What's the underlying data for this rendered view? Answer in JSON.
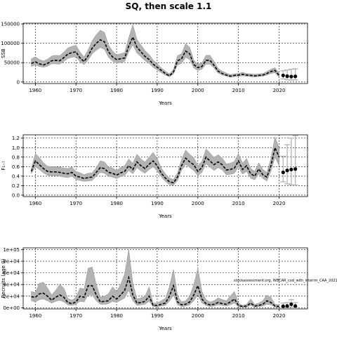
{
  "figure_title": "SQ, then scale 1.1",
  "source_note": "stockassessment.org, WBCAR_cod_with_interim_CAA_2021",
  "chart_data": [
    {
      "type": "line",
      "ylabel": "SSB",
      "xlabel": "Years",
      "xlim": [
        1957,
        2027
      ],
      "ylim": [
        -4000,
        152000
      ],
      "xticks": [
        1960,
        1970,
        1980,
        1990,
        2000,
        2010,
        2020
      ],
      "yticks": [
        0,
        50000,
        100000,
        150000
      ],
      "ytick_labels": [
        "0",
        "50000",
        "100000",
        "150000"
      ],
      "grid": true,
      "x": [
        1959,
        1960,
        1961,
        1962,
        1963,
        1964,
        1965,
        1966,
        1967,
        1968,
        1969,
        1970,
        1971,
        1972,
        1973,
        1974,
        1975,
        1976,
        1977,
        1978,
        1979,
        1980,
        1981,
        1982,
        1983,
        1984,
        1985,
        1986,
        1987,
        1988,
        1989,
        1990,
        1991,
        1992,
        1993,
        1994,
        1995,
        1996,
        1997,
        1998,
        1999,
        2000,
        2001,
        2002,
        2003,
        2004,
        2005,
        2006,
        2007,
        2008,
        2009,
        2010,
        2011,
        2012,
        2013,
        2014,
        2015,
        2016,
        2017,
        2018,
        2019,
        2020
      ],
      "estimate": [
        48000,
        52000,
        47000,
        44000,
        48000,
        55000,
        56000,
        55000,
        63000,
        72000,
        76000,
        78000,
        62000,
        53000,
        68000,
        88000,
        100000,
        109000,
        104000,
        78000,
        65000,
        58000,
        60000,
        62000,
        93000,
        116000,
        90000,
        78000,
        66000,
        58000,
        46000,
        38000,
        30000,
        22000,
        16000,
        26000,
        55000,
        60000,
        80000,
        73000,
        45000,
        37000,
        40000,
        56000,
        56000,
        43000,
        28000,
        22000,
        18000,
        15000,
        17000,
        18000,
        20000,
        18000,
        17000,
        16000,
        17000,
        18000,
        22000,
        27000,
        30000,
        17000
      ],
      "lower": [
        40000,
        44000,
        40000,
        38000,
        41000,
        47000,
        47000,
        46000,
        53000,
        61000,
        64000,
        65000,
        52000,
        45000,
        57000,
        73000,
        82000,
        89000,
        85000,
        64000,
        54000,
        49000,
        50000,
        53000,
        78000,
        96000,
        75000,
        65000,
        55000,
        48000,
        38000,
        31000,
        24000,
        18000,
        13000,
        21000,
        44000,
        48000,
        64000,
        58000,
        36000,
        30000,
        33000,
        46000,
        46000,
        36000,
        23000,
        18000,
        15000,
        12000,
        14000,
        15000,
        16000,
        15000,
        14000,
        13000,
        14000,
        15000,
        18000,
        22000,
        24000,
        12000
      ],
      "upper": [
        60000,
        65000,
        58000,
        54000,
        59000,
        67000,
        69000,
        68000,
        77000,
        88000,
        92000,
        95000,
        77000,
        65000,
        83000,
        107000,
        122000,
        134000,
        128000,
        96000,
        80000,
        70000,
        73000,
        76000,
        114000,
        148000,
        110000,
        96000,
        81000,
        71000,
        57000,
        47000,
        37000,
        28000,
        21000,
        33000,
        68000,
        73000,
        99000,
        90000,
        56000,
        46000,
        49000,
        69000,
        69000,
        53000,
        35000,
        28000,
        23000,
        19000,
        21000,
        22000,
        25000,
        22000,
        21000,
        20000,
        21000,
        22000,
        27000,
        33000,
        37000,
        23000
      ],
      "forecast": {
        "x": [
          2021,
          2022,
          2023,
          2024
        ],
        "estimate": [
          17000,
          15000,
          14000,
          14500
        ],
        "lower": [
          8000,
          6000,
          5000,
          5500
        ],
        "upper": [
          29000,
          31000,
          33000,
          34000
        ]
      }
    },
    {
      "type": "line",
      "ylabel": "F₁₋₇",
      "xlabel": "Years",
      "xlim": [
        1957,
        2027
      ],
      "ylim": [
        -0.03,
        1.27
      ],
      "xticks": [
        1960,
        1970,
        1980,
        1990,
        2000,
        2010,
        2020
      ],
      "yticks": [
        0,
        0.2,
        0.4,
        0.6,
        0.8,
        1.0,
        1.2
      ],
      "ytick_labels": [
        "0.0",
        "0.2",
        "0.4",
        "0.6",
        "0.8",
        "1.0",
        "1.2"
      ],
      "grid": true,
      "x": [
        1959,
        1960,
        1961,
        1962,
        1963,
        1964,
        1965,
        1966,
        1967,
        1968,
        1969,
        1970,
        1971,
        1972,
        1973,
        1974,
        1975,
        1976,
        1977,
        1978,
        1979,
        1980,
        1981,
        1982,
        1983,
        1984,
        1985,
        1986,
        1987,
        1988,
        1989,
        1990,
        1991,
        1992,
        1993,
        1994,
        1995,
        1996,
        1997,
        1998,
        1999,
        2000,
        2001,
        2002,
        2003,
        2004,
        2005,
        2006,
        2007,
        2008,
        2009,
        2010,
        2011,
        2012,
        2013,
        2014,
        2015,
        2016,
        2017,
        2018,
        2019,
        2020
      ],
      "estimate": [
        0.5,
        0.72,
        0.64,
        0.56,
        0.5,
        0.49,
        0.49,
        0.48,
        0.46,
        0.45,
        0.48,
        0.4,
        0.38,
        0.35,
        0.37,
        0.38,
        0.48,
        0.58,
        0.56,
        0.48,
        0.46,
        0.42,
        0.47,
        0.5,
        0.62,
        0.54,
        0.7,
        0.62,
        0.56,
        0.65,
        0.72,
        0.62,
        0.46,
        0.36,
        0.28,
        0.26,
        0.38,
        0.62,
        0.78,
        0.7,
        0.64,
        0.5,
        0.58,
        0.8,
        0.72,
        0.64,
        0.7,
        0.64,
        0.53,
        0.54,
        0.57,
        0.72,
        0.54,
        0.62,
        0.45,
        0.4,
        0.55,
        0.43,
        0.38,
        0.62,
        1.0,
        0.8
      ],
      "lower": [
        0.45,
        0.6,
        0.54,
        0.47,
        0.42,
        0.41,
        0.41,
        0.4,
        0.38,
        0.37,
        0.4,
        0.33,
        0.31,
        0.29,
        0.3,
        0.31,
        0.4,
        0.48,
        0.46,
        0.4,
        0.38,
        0.35,
        0.39,
        0.42,
        0.52,
        0.45,
        0.58,
        0.51,
        0.46,
        0.54,
        0.6,
        0.51,
        0.38,
        0.29,
        0.22,
        0.21,
        0.31,
        0.52,
        0.65,
        0.58,
        0.52,
        0.41,
        0.48,
        0.66,
        0.59,
        0.52,
        0.58,
        0.53,
        0.43,
        0.44,
        0.46,
        0.6,
        0.44,
        0.5,
        0.36,
        0.32,
        0.45,
        0.35,
        0.3,
        0.5,
        0.8,
        0.62
      ],
      "upper": [
        0.56,
        0.88,
        0.79,
        0.68,
        0.61,
        0.6,
        0.6,
        0.59,
        0.57,
        0.56,
        0.59,
        0.5,
        0.47,
        0.43,
        0.46,
        0.47,
        0.58,
        0.72,
        0.7,
        0.59,
        0.57,
        0.52,
        0.58,
        0.62,
        0.76,
        0.67,
        0.86,
        0.76,
        0.7,
        0.8,
        0.9,
        0.77,
        0.57,
        0.45,
        0.36,
        0.33,
        0.47,
        0.75,
        0.95,
        0.86,
        0.79,
        0.62,
        0.71,
        0.97,
        0.89,
        0.79,
        0.85,
        0.78,
        0.66,
        0.67,
        0.71,
        0.88,
        0.67,
        0.77,
        0.56,
        0.5,
        0.68,
        0.54,
        0.48,
        0.77,
        1.22,
        1.0
      ],
      "forecast": {
        "x": [
          2021,
          2022,
          2023,
          2024
        ],
        "estimate": [
          0.48,
          0.52,
          0.54,
          0.55
        ],
        "lower": [
          0.28,
          0.24,
          0.22,
          0.21
        ],
        "upper": [
          0.82,
          1.06,
          1.2,
          1.25
        ]
      }
    },
    {
      "type": "line",
      "ylabel": "Recruits (age 0)",
      "xlabel": "Years",
      "xlim": [
        1957,
        2027
      ],
      "ylim": [
        -2000,
        103000
      ],
      "xticks": [
        1960,
        1970,
        1980,
        1990,
        2000,
        2010,
        2020
      ],
      "yticks": [
        0,
        20000,
        40000,
        60000,
        80000,
        100000
      ],
      "ytick_labels": [
        "0e+00",
        "2e+04",
        "4e+04",
        "6e+04",
        "8e+04",
        "1e+05"
      ],
      "grid": true,
      "x": [
        1959,
        1960,
        1961,
        1962,
        1963,
        1964,
        1965,
        1966,
        1967,
        1968,
        1969,
        1970,
        1971,
        1972,
        1973,
        1974,
        1975,
        1976,
        1977,
        1978,
        1979,
        1980,
        1981,
        1982,
        1983,
        1984,
        1985,
        1986,
        1987,
        1988,
        1989,
        1990,
        1991,
        1992,
        1993,
        1994,
        1995,
        1996,
        1997,
        1998,
        1999,
        2000,
        2001,
        2002,
        2003,
        2004,
        2005,
        2006,
        2007,
        2008,
        2009,
        2010,
        2011,
        2012,
        2013,
        2014,
        2015,
        2016,
        2017,
        2018,
        2019,
        2020
      ],
      "estimate": [
        19000,
        18000,
        24000,
        25000,
        20000,
        13000,
        18000,
        22000,
        18000,
        9000,
        7000,
        10000,
        20000,
        18000,
        38000,
        38000,
        22000,
        10000,
        11000,
        12000,
        20000,
        15000,
        22000,
        30000,
        52000,
        22000,
        8000,
        9000,
        11000,
        20000,
        4000,
        4000,
        6000,
        8000,
        20000,
        38000,
        10000,
        5000,
        6000,
        10000,
        22000,
        38000,
        15000,
        7000,
        5000,
        6000,
        9000,
        7000,
        6000,
        10000,
        15000,
        4000,
        2000,
        3000,
        8000,
        3000,
        4000,
        6000,
        12000,
        9000,
        3000,
        2000
      ],
      "lower": [
        12000,
        10000,
        14000,
        15000,
        12000,
        8000,
        11000,
        13000,
        10000,
        5000,
        4000,
        6000,
        11000,
        10000,
        22000,
        22000,
        12000,
        6000,
        6000,
        7000,
        11000,
        9000,
        13000,
        17000,
        30000,
        12000,
        4000,
        5000,
        6000,
        11000,
        2000,
        2000,
        3000,
        4000,
        11000,
        22000,
        5000,
        2000,
        3000,
        5000,
        12000,
        22000,
        8000,
        4000,
        2000,
        3000,
        5000,
        4000,
        3000,
        5000,
        8000,
        2000,
        1000,
        1000,
        4000,
        1000,
        2000,
        3000,
        6000,
        5000,
        1000,
        500
      ],
      "upper": [
        28000,
        26000,
        42000,
        44000,
        34000,
        22000,
        30000,
        40000,
        34000,
        16000,
        13000,
        18000,
        34000,
        32000,
        68000,
        70000,
        40000,
        18000,
        20000,
        24000,
        36000,
        28000,
        40000,
        58000,
        100000,
        42000,
        15000,
        17000,
        20000,
        36000,
        8000,
        8000,
        12000,
        16000,
        36000,
        66000,
        20000,
        10000,
        12000,
        20000,
        40000,
        68000,
        28000,
        14000,
        10000,
        12000,
        17000,
        14000,
        12000,
        20000,
        28000,
        8000,
        4000,
        6000,
        15000,
        6000,
        8000,
        12000,
        22000,
        18000,
        6000,
        5000
      ],
      "forecast": {
        "x": [
          2021,
          2022,
          2023,
          2024
        ],
        "estimate": [
          2500,
          3000,
          6000,
          3000
        ],
        "lower": [
          500,
          600,
          1000,
          600
        ],
        "upper": [
          8000,
          9000,
          14000,
          9000
        ]
      }
    }
  ]
}
